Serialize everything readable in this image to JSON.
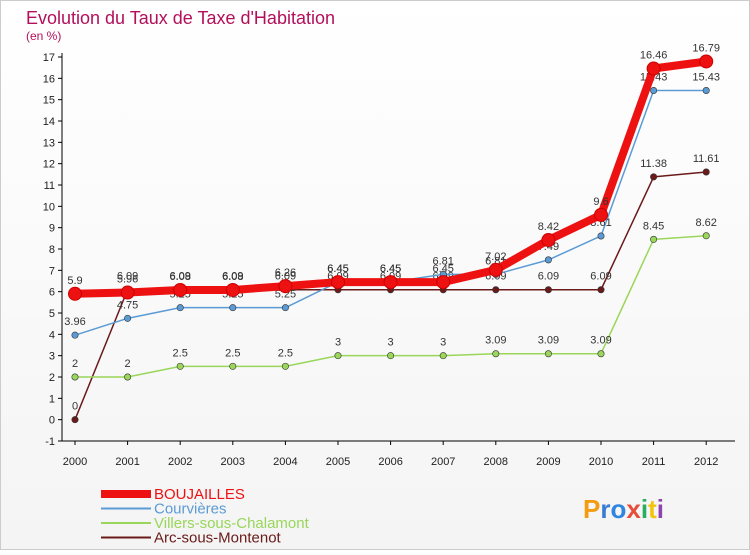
{
  "chart_data": {
    "type": "line",
    "title": "Evolution du Taux de Taxe d'Habitation",
    "subtitle": "(en %)",
    "xlabel": "",
    "ylabel": "",
    "categories": [
      "2000",
      "2001",
      "2002",
      "2003",
      "2004",
      "2005",
      "2006",
      "2007",
      "2008",
      "2009",
      "2010",
      "2011",
      "2012"
    ],
    "ylim": [
      -1,
      17
    ],
    "yticks": [
      -1,
      0,
      1,
      2,
      3,
      4,
      5,
      6,
      7,
      8,
      9,
      10,
      11,
      12,
      13,
      14,
      15,
      16,
      17
    ],
    "grid": false,
    "legend_position": "bottom-left",
    "series": [
      {
        "name": "Arc-sous-Montenot",
        "color": "#6b1a1a",
        "values": [
          0,
          6.09,
          6.09,
          6.09,
          6.09,
          6.09,
          6.09,
          6.09,
          6.09,
          6.09,
          6.09,
          11.38,
          11.61
        ],
        "labels": [
          "0",
          "6.09",
          "6.09",
          "6.09",
          "6.09",
          "6.09",
          "6.09",
          "6.09",
          "6.09",
          "6.09",
          "6.09",
          "11.38",
          "11.61"
        ]
      },
      {
        "name": "Villers-sous-Chalamont",
        "color": "#99d65a",
        "values": [
          2,
          2,
          2.5,
          2.5,
          2.5,
          3,
          3,
          3,
          3.09,
          3.09,
          3.09,
          8.45,
          8.62
        ],
        "labels": [
          "2",
          "2",
          "2.5",
          "2.5",
          "2.5",
          "3",
          "3",
          "3",
          "3.09",
          "3.09",
          "3.09",
          "8.45",
          "8.62"
        ]
      },
      {
        "name": "Courvières",
        "color": "#5b9bd5",
        "values": [
          3.96,
          4.75,
          5.25,
          5.25,
          5.25,
          6.45,
          6.45,
          6.81,
          6.81,
          7.49,
          8.61,
          15.43,
          15.43
        ],
        "labels": [
          "3.96",
          "4.75",
          "5.25",
          "5.25",
          "5.25",
          "6.45",
          "6.45",
          "6.81",
          "6.81",
          "7.49",
          "8.61",
          "15.43",
          "15.43"
        ]
      },
      {
        "name": "BOUJAILLES",
        "color": "#ee1111",
        "values": [
          5.9,
          5.96,
          6.08,
          6.08,
          6.26,
          6.45,
          6.45,
          6.45,
          7.02,
          8.42,
          9.6,
          16.46,
          16.79
        ],
        "labels": [
          "5.9",
          "5.96",
          "6.08",
          "6.08",
          "6.26",
          "6.45",
          "6.45",
          "6.45",
          "7.02",
          "8.42",
          "9.6",
          "16.46",
          "16.79"
        ]
      }
    ],
    "legend": [
      {
        "name": "BOUJAILLES",
        "color": "#ee1111"
      },
      {
        "name": "Courvières",
        "color": "#5b9bd5"
      },
      {
        "name": "Villers-sous-Chalamont",
        "color": "#99d65a"
      },
      {
        "name": "Arc-sous-Montenot",
        "color": "#6b1a1a"
      }
    ]
  },
  "branding": {
    "logo_text": "Proxiti",
    "logo_colors": [
      "#f39c12",
      "#3a7bd5",
      "#2e86de",
      "#e74c3c",
      "#27ae60",
      "#f1c40f",
      "#8e44ad"
    ]
  }
}
